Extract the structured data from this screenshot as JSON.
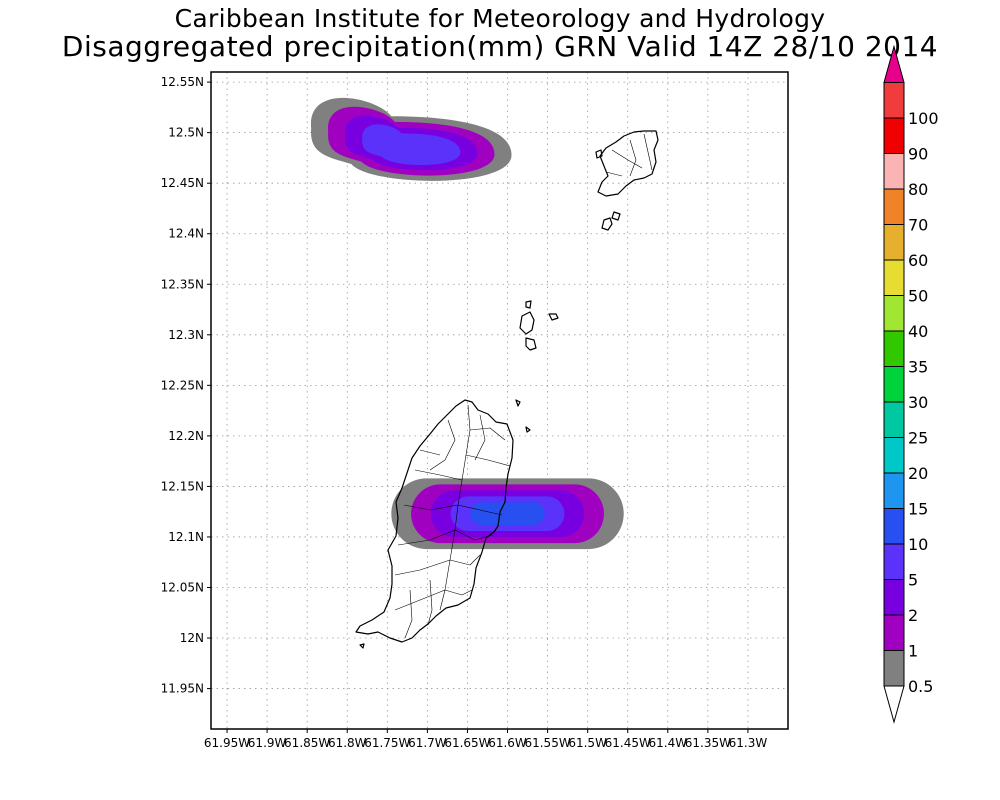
{
  "header": {
    "institution": "Caribbean Institute for Meteorology and Hydrology",
    "product": "Disaggregated precipitation(mm) GRN Valid 14Z 28/10 2014"
  },
  "map": {
    "region": "GRN",
    "lon_range": [
      -61.97,
      -61.25
    ],
    "lat_range": [
      11.91,
      12.56
    ],
    "grid": true,
    "lat_ticks": [
      {
        "value": 12.55,
        "label": "12.55N"
      },
      {
        "value": 12.5,
        "label": "12.5N"
      },
      {
        "value": 12.45,
        "label": "12.45N"
      },
      {
        "value": 12.4,
        "label": "12.4N"
      },
      {
        "value": 12.35,
        "label": "12.35N"
      },
      {
        "value": 12.3,
        "label": "12.3N"
      },
      {
        "value": 12.25,
        "label": "12.25N"
      },
      {
        "value": 12.2,
        "label": "12.2N"
      },
      {
        "value": 12.15,
        "label": "12.15N"
      },
      {
        "value": 12.1,
        "label": "12.1N"
      },
      {
        "value": 12.05,
        "label": "12.05N"
      },
      {
        "value": 12.0,
        "label": "12N"
      },
      {
        "value": 11.95,
        "label": "11.95N"
      }
    ],
    "lon_ticks": [
      {
        "value": -61.95,
        "label": "61.95W"
      },
      {
        "value": -61.9,
        "label": "61.9W"
      },
      {
        "value": -61.85,
        "label": "61.85W"
      },
      {
        "value": -61.8,
        "label": "61.8W"
      },
      {
        "value": -61.75,
        "label": "61.75W"
      },
      {
        "value": -61.7,
        "label": "61.7W"
      },
      {
        "value": -61.65,
        "label": "61.65W"
      },
      {
        "value": -61.6,
        "label": "61.6W"
      },
      {
        "value": -61.55,
        "label": "61.55W"
      },
      {
        "value": -61.5,
        "label": "61.5W"
      },
      {
        "value": -61.45,
        "label": "61.45W"
      },
      {
        "value": -61.4,
        "label": "61.4W"
      },
      {
        "value": -61.35,
        "label": "61.35W"
      },
      {
        "value": -61.3,
        "label": "61.3W"
      }
    ],
    "precip_cells": [
      {
        "name": "north-cell",
        "center_lon": -61.72,
        "center_lat": 12.483,
        "lon_radius": 0.125,
        "lat_radius": 0.035,
        "peak_class": "5"
      },
      {
        "name": "south-cell",
        "center_lon": -61.6,
        "center_lat": 12.123,
        "lon_radius": 0.145,
        "lat_radius": 0.035,
        "peak_class": "10"
      }
    ],
    "islands": [
      "Grenada",
      "Carriacou",
      "Grenadines"
    ]
  },
  "legend": {
    "bins": [
      {
        "label": "0.5",
        "color": "#808080"
      },
      {
        "label": "1",
        "color": "#a000c0"
      },
      {
        "label": "2",
        "color": "#7800e0"
      },
      {
        "label": "5",
        "color": "#5a32fa"
      },
      {
        "label": "10",
        "color": "#2850f0"
      },
      {
        "label": "15",
        "color": "#1e96f0"
      },
      {
        "label": "20",
        "color": "#00c8c8"
      },
      {
        "label": "25",
        "color": "#00c8a0"
      },
      {
        "label": "30",
        "color": "#00d23c"
      },
      {
        "label": "35",
        "color": "#32c800"
      },
      {
        "label": "40",
        "color": "#a0e632"
      },
      {
        "label": "50",
        "color": "#e6dc32"
      },
      {
        "label": "60",
        "color": "#e6af2d"
      },
      {
        "label": "70",
        "color": "#f08228"
      },
      {
        "label": "80",
        "color": "#fab4b4"
      },
      {
        "label": "90",
        "color": "#f00000"
      },
      {
        "label": "100",
        "color": "#f03c3c"
      }
    ],
    "over_color": "#e6008c",
    "under_color": "#ffffff"
  }
}
